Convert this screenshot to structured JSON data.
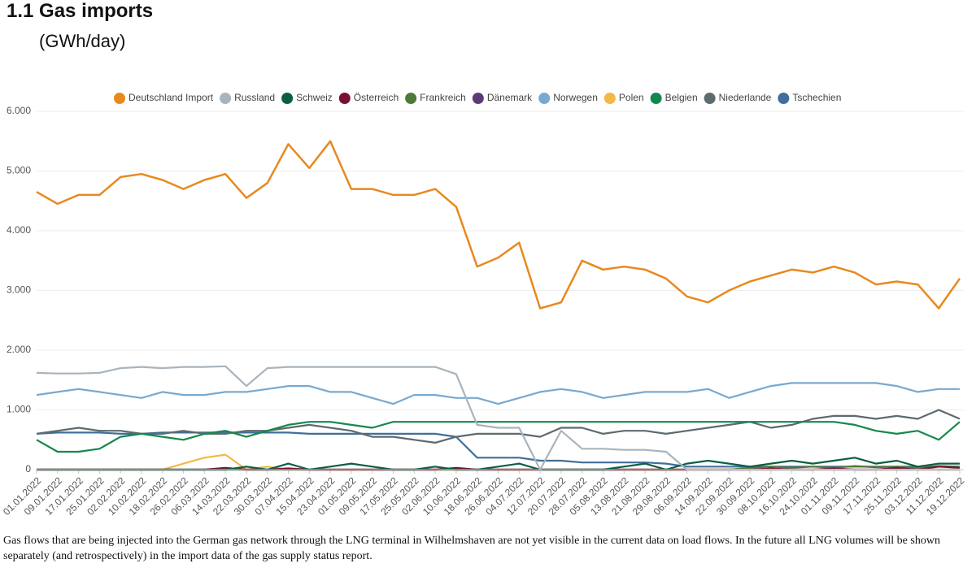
{
  "title": "1.1 Gas imports",
  "subtitle": "(GWh/day)",
  "note": "Gas flows that are being injected into the German gas network through the LNG terminal in Wilhelmshaven are not yet visible in the current data on load flows. In the future all LNG volumes will be shown separately (and retrospectively) in the import data of the gas supply status report.",
  "chart_data": {
    "type": "line",
    "categories": [
      "01.01.2022",
      "09.01.2022",
      "17.01.2022",
      "25.01.2022",
      "02.02.2022",
      "10.02.2022",
      "18.02.2022",
      "26.02.2022",
      "06.03.2022",
      "14.03.2022",
      "22.03.2022",
      "30.03.2022",
      "07.04.2022",
      "15.04.2022",
      "23.04.2022",
      "01.05.2022",
      "09.05.2022",
      "17.05.2022",
      "25.05.2022",
      "02.06.2022",
      "10.06.2022",
      "18.06.2022",
      "26.06.2022",
      "04.07.2022",
      "12.07.2022",
      "20.07.2022",
      "28.07.2022",
      "05.08.2022",
      "13.08.2022",
      "21.08.2022",
      "29.08.2022",
      "06.09.2022",
      "14.09.2022",
      "22.09.2022",
      "30.09.2022",
      "08.10.2022",
      "16.10.2022",
      "24.10.2022",
      "01.11.2022",
      "09.11.2022",
      "17.11.2022",
      "25.11.2022",
      "03.12.2022",
      "11.12.2022",
      "19.12.2022"
    ],
    "ylim": [
      0,
      6000
    ],
    "yticks": [
      0,
      {
        "value": 1000,
        "label": "1.000"
      },
      {
        "value": 2000,
        "label": "2.000"
      },
      {
        "value": 3000,
        "label": "3.000"
      },
      {
        "value": 4000,
        "label": "4.000"
      },
      {
        "value": 5000,
        "label": "5.000"
      },
      {
        "value": 6000,
        "label": "6.000"
      }
    ],
    "grid": true,
    "series": [
      {
        "name": "Deutschland Import",
        "color": "#e8891f",
        "values": [
          4650,
          4450,
          4600,
          4600,
          4900,
          4950,
          4850,
          4700,
          4850,
          4950,
          4550,
          4800,
          5450,
          5050,
          5500,
          4700,
          4700,
          4600,
          4600,
          4700,
          4400,
          3400,
          3550,
          3800,
          2700,
          2800,
          3500,
          3350,
          3400,
          3350,
          3200,
          2900,
          2800,
          3000,
          3150,
          3250,
          3350,
          3300,
          3400,
          3300,
          3100,
          3150,
          3100,
          2700,
          3200
        ]
      },
      {
        "name": "Russland",
        "color": "#a9b4bc",
        "values": [
          1620,
          1610,
          1610,
          1620,
          1700,
          1720,
          1700,
          1720,
          1720,
          1730,
          1400,
          1700,
          1720,
          1720,
          1720,
          1720,
          1720,
          1720,
          1720,
          1720,
          1600,
          750,
          700,
          700,
          0,
          650,
          350,
          350,
          330,
          330,
          300,
          0,
          0,
          0,
          0,
          0,
          0,
          0,
          0,
          0,
          0,
          0,
          0,
          0,
          0
        ]
      },
      {
        "name": "Schweiz",
        "color": "#0b5e45",
        "values": [
          0,
          0,
          0,
          0,
          0,
          0,
          0,
          0,
          0,
          0,
          50,
          0,
          100,
          0,
          50,
          100,
          50,
          0,
          0,
          50,
          0,
          0,
          50,
          100,
          0,
          0,
          0,
          0,
          50,
          100,
          0,
          100,
          150,
          100,
          50,
          100,
          150,
          100,
          150,
          200,
          100,
          150,
          50,
          100,
          100
        ]
      },
      {
        "name": "Österreich",
        "color": "#7a1035",
        "values": [
          0,
          0,
          0,
          0,
          0,
          0,
          0,
          0,
          0,
          30,
          0,
          0,
          20,
          0,
          0,
          0,
          0,
          0,
          0,
          0,
          30,
          0,
          0,
          0,
          0,
          0,
          0,
          0,
          0,
          0,
          0,
          0,
          0,
          0,
          0,
          20,
          0,
          0,
          20,
          0,
          0,
          30,
          0,
          50,
          30
        ]
      },
      {
        "name": "Frankreich",
        "color": "#4f7a35",
        "values": [
          0,
          0,
          0,
          0,
          0,
          0,
          0,
          0,
          0,
          0,
          0,
          0,
          0,
          0,
          0,
          0,
          0,
          0,
          0,
          0,
          0,
          0,
          0,
          0,
          0,
          0,
          0,
          0,
          0,
          0,
          0,
          0,
          0,
          0,
          30,
          50,
          30,
          50,
          30,
          60,
          40,
          50,
          30,
          60,
          50
        ]
      },
      {
        "name": "Dänemark",
        "color": "#5c3a7a",
        "values": [
          0,
          0,
          0,
          0,
          0,
          0,
          0,
          0,
          0,
          0,
          0,
          0,
          0,
          0,
          0,
          0,
          0,
          0,
          0,
          0,
          0,
          0,
          0,
          0,
          0,
          0,
          0,
          0,
          0,
          0,
          0,
          0,
          0,
          0,
          0,
          0,
          0,
          0,
          0,
          0,
          0,
          0,
          0,
          0,
          0
        ]
      },
      {
        "name": "Norwegen",
        "color": "#78a9d0",
        "values": [
          1250,
          1300,
          1350,
          1300,
          1250,
          1200,
          1300,
          1250,
          1250,
          1300,
          1300,
          1350,
          1400,
          1400,
          1300,
          1300,
          1200,
          1100,
          1250,
          1250,
          1200,
          1200,
          1100,
          1200,
          1300,
          1350,
          1300,
          1200,
          1250,
          1300,
          1300,
          1300,
          1350,
          1200,
          1300,
          1400,
          1450,
          1450,
          1450,
          1450,
          1450,
          1400,
          1300,
          1350,
          1350
        ]
      },
      {
        "name": "Polen",
        "color": "#f4b942",
        "values": [
          0,
          0,
          0,
          0,
          0,
          0,
          0,
          100,
          200,
          250,
          0,
          50,
          0,
          0,
          0,
          0,
          0,
          0,
          0,
          0,
          0,
          0,
          0,
          0,
          0,
          0,
          0,
          0,
          0,
          0,
          0,
          0,
          0,
          0,
          0,
          0,
          0,
          0,
          0,
          0,
          0,
          0,
          0,
          0,
          0
        ]
      },
      {
        "name": "Belgien",
        "color": "#14884c",
        "values": [
          500,
          300,
          300,
          350,
          550,
          600,
          550,
          500,
          600,
          650,
          550,
          650,
          750,
          800,
          800,
          750,
          700,
          800,
          800,
          800,
          800,
          800,
          800,
          800,
          800,
          800,
          800,
          800,
          800,
          800,
          800,
          800,
          800,
          800,
          800,
          800,
          800,
          800,
          800,
          750,
          650,
          600,
          650,
          500,
          800
        ]
      },
      {
        "name": "Niederlande",
        "color": "#5d6a6f",
        "values": [
          600,
          650,
          700,
          650,
          650,
          600,
          600,
          650,
          600,
          600,
          650,
          650,
          700,
          750,
          700,
          650,
          550,
          550,
          500,
          450,
          550,
          600,
          600,
          600,
          550,
          700,
          700,
          600,
          650,
          650,
          600,
          650,
          700,
          750,
          800,
          700,
          750,
          850,
          900,
          900,
          850,
          900,
          850,
          1000,
          850
        ]
      },
      {
        "name": "Tschechien",
        "color": "#3f6f9a",
        "values": [
          600,
          620,
          620,
          620,
          600,
          600,
          620,
          620,
          620,
          620,
          620,
          620,
          620,
          600,
          600,
          600,
          600,
          600,
          600,
          600,
          550,
          200,
          200,
          200,
          150,
          150,
          120,
          120,
          120,
          120,
          100,
          50,
          50,
          50,
          50,
          50,
          50,
          50,
          50,
          50,
          50,
          50,
          50,
          50,
          50
        ]
      }
    ]
  }
}
